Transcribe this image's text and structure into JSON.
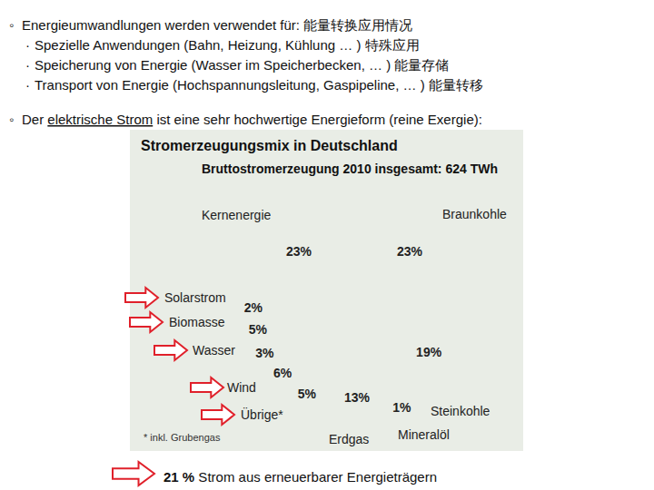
{
  "slide": {
    "bullet": "◦",
    "sub_bullet": "·",
    "heading": "Energieumwandlungen werden verwendet für:  能量转换应用情况",
    "items": [
      "Spezielle Anwendungen (Bahn, Heizung, Kühlung … ) 特殊应用",
      "Speicherung von Energie (Wasser im Speicherbecken, … ) 能量存储",
      "Transport von Energie (Hochspannungsleitung, Gaspipeline, … ) 能量转移"
    ],
    "statement": {
      "before": "Der ",
      "underlined": "elektrische Strom",
      "after": " ist eine sehr hochwertige Energieform (reine Exergie):"
    },
    "conclusion": {
      "emphasis": "21 %",
      "text": " Strom aus erneuerbarer Energieträgern"
    }
  },
  "chart_data": {
    "type": "pie",
    "title": "Stromerzeugungsmix in Deutschland",
    "subtitle": "Bruttostromerzeugung 2010 insgesamt: 624 TWh",
    "categories": [
      "Braunkohle",
      "Steinkohle",
      "Mineralöl",
      "Erdgas",
      "Übrige*",
      "Wind",
      "Wasser",
      "Biomasse",
      "Solarstrom",
      "Kernenergie"
    ],
    "values": [
      23,
      19,
      1,
      13,
      5,
      6,
      3,
      5,
      2,
      23
    ],
    "value_labels": [
      "23%",
      "19%",
      "1%",
      "13%",
      "5%",
      "6%",
      "3%",
      "5%",
      "2%",
      "23%"
    ],
    "colors": [
      "#a9683f",
      "#1d9a4c",
      "#e89a1e",
      "#ffe01a",
      "#d6dad6",
      "#e8f3f8",
      "#1f8fd0",
      "#d97646",
      "#d81e30",
      "#a9d9c2"
    ],
    "data_labels": true,
    "footnote": "* inkl. Grubengas"
  }
}
